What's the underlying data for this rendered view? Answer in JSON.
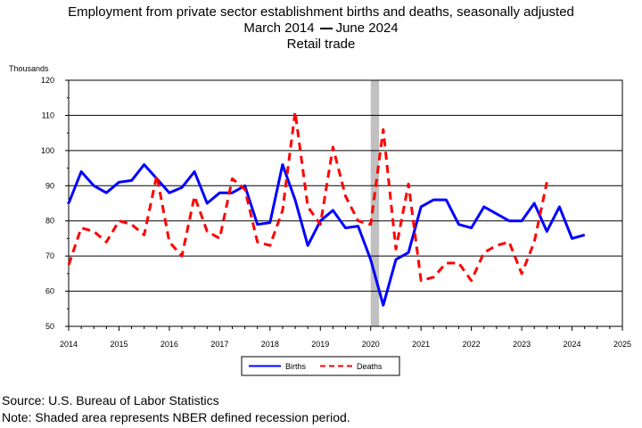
{
  "chart_data": {
    "type": "line",
    "title": "Employment from private sector establishment births and deaths, seasonally adjusted",
    "subtitle_start": "March 2014",
    "subtitle_end": "June 2024",
    "subtitle2": "Retail trade",
    "ylabel": "Thousands",
    "xlabel": "",
    "ylim": [
      50,
      120
    ],
    "yticks": [
      50,
      60,
      70,
      80,
      90,
      100,
      110,
      120
    ],
    "xlim": [
      2014,
      2025
    ],
    "xticks": [
      2014,
      2015,
      2016,
      2017,
      2018,
      2019,
      2020,
      2021,
      2022,
      2023,
      2024,
      2025
    ],
    "grid": true,
    "legend_position": "bottom-center",
    "recession": {
      "start": 2020.0,
      "end": 2020.167,
      "color": "#c0c0c0"
    },
    "series": [
      {
        "name": "Births",
        "color": "#0000ff",
        "dash": "solid",
        "x": [
          2014.0,
          2014.25,
          2014.5,
          2014.75,
          2015.0,
          2015.25,
          2015.5,
          2015.75,
          2016.0,
          2016.25,
          2016.5,
          2016.75,
          2017.0,
          2017.25,
          2017.5,
          2017.75,
          2018.0,
          2018.25,
          2018.5,
          2018.75,
          2019.0,
          2019.25,
          2019.5,
          2019.75,
          2020.0,
          2020.25,
          2020.5,
          2020.75,
          2021.0,
          2021.25,
          2021.5,
          2021.75,
          2022.0,
          2022.25,
          2022.5,
          2022.75,
          2023.0,
          2023.25,
          2023.5,
          2023.75,
          2024.0,
          2024.25
        ],
        "y": [
          85,
          94,
          90,
          88,
          91,
          91.5,
          96,
          92,
          88,
          89.5,
          94,
          85,
          88,
          88,
          90,
          79,
          79.5,
          96,
          86,
          73,
          80,
          83,
          78,
          78.5,
          69,
          56,
          69,
          71,
          84,
          86,
          86,
          79,
          78,
          84,
          82,
          80,
          80,
          85,
          77,
          84,
          75,
          76
        ]
      },
      {
        "name": "Deaths",
        "color": "#ff0000",
        "dash": "dashed",
        "x": [
          2014.0,
          2014.25,
          2014.5,
          2014.75,
          2015.0,
          2015.25,
          2015.5,
          2015.75,
          2016.0,
          2016.25,
          2016.5,
          2016.75,
          2017.0,
          2017.25,
          2017.5,
          2017.75,
          2018.0,
          2018.25,
          2018.5,
          2018.75,
          2019.0,
          2019.25,
          2019.5,
          2019.75,
          2020.0,
          2020.25,
          2020.5,
          2020.75,
          2021.0,
          2021.25,
          2021.5,
          2021.75,
          2022.0,
          2022.25,
          2022.5,
          2022.75,
          2023.0,
          2023.25,
          2023.5
        ],
        "y": [
          67.5,
          78,
          77,
          74,
          80,
          79,
          76,
          93,
          74,
          70,
          87,
          77,
          75,
          92,
          89,
          74,
          73,
          83,
          111,
          84,
          79,
          101,
          87,
          80,
          79,
          106,
          72,
          90.5,
          63,
          64,
          68,
          68,
          63,
          71,
          73,
          74,
          65,
          74,
          91
        ]
      }
    ]
  },
  "footer": {
    "source": "Source: U.S. Bureau of Labor Statistics",
    "note": "Note: Shaded area represents NBER defined recession period."
  },
  "colors": {
    "births": "#0000ff",
    "deaths": "#ff0000",
    "recession": "#c0c0c0",
    "grid": "#000000"
  }
}
